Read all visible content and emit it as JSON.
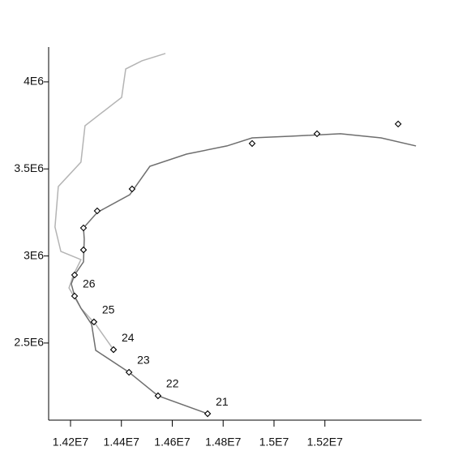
{
  "chart_data": {
    "type": "line",
    "xlim": [
      14114000,
      15580000
    ],
    "ylim": [
      2057000,
      4200000
    ],
    "xticks": [
      {
        "value": 14200000,
        "label": "1.42E7"
      },
      {
        "value": 14400000,
        "label": "1.44E7"
      },
      {
        "value": 14600000,
        "label": "1.46E7"
      },
      {
        "value": 14800000,
        "label": "1.48E7"
      },
      {
        "value": 15000000,
        "label": "1.5E7"
      },
      {
        "value": 15200000,
        "label": "1.52E7"
      }
    ],
    "yticks": [
      {
        "value": 2500000,
        "label": "2.5E6"
      },
      {
        "value": 3000000,
        "label": "3E6"
      },
      {
        "value": 3500000,
        "label": "3.5E6"
      },
      {
        "value": 4000000,
        "label": "4E6"
      }
    ],
    "series": [
      {
        "type": "line",
        "color": "#b4b4b4",
        "x": [
          14369000,
          14299000,
          14241000,
          14194000,
          14210000,
          14241000,
          14162000,
          14139000,
          14152000,
          14241000,
          14257000,
          14401000,
          14417000,
          14481000,
          14573000
        ],
        "values": [
          2462000,
          2607000,
          2700000,
          2816000,
          2886000,
          2979000,
          3026000,
          3166000,
          3399000,
          3539000,
          3748000,
          3911000,
          4074000,
          4121000,
          4163000
        ]
      },
      {
        "type": "line",
        "color": "#6e6e6e",
        "x": [
          14739000,
          14544000,
          14430000,
          14299000,
          14283000,
          14241000,
          14216000,
          14203000,
          14216000,
          14251000,
          14254000,
          14251000,
          14305000,
          14433000,
          14512000,
          14656000,
          14815000,
          14914000,
          15070000,
          15261000,
          15421000,
          15558000
        ],
        "values": [
          2094000,
          2197000,
          2332000,
          2458000,
          2607000,
          2700000,
          2770000,
          2840000,
          2891000,
          2966000,
          3096000,
          3161000,
          3250000,
          3352000,
          3515000,
          3585000,
          3632000,
          3678000,
          3688000,
          3702000,
          3678000,
          3632000
        ]
      },
      {
        "type": "scatter",
        "marker": "diamond",
        "color": "#000000",
        "x": [
          14739000,
          14544000,
          14430000,
          14369000,
          14292000,
          14216000,
          14216000,
          14251000,
          14251000,
          14305000,
          14442000,
          14914000,
          15169000,
          15488000
        ],
        "values": [
          2094000,
          2197000,
          2332000,
          2462000,
          2621000,
          2770000,
          2891000,
          3035000,
          3161000,
          3259000,
          3385000,
          3646000,
          3702000,
          3758000
        ],
        "labels": [
          "21",
          "22",
          "23",
          "24",
          "25",
          "26",
          null,
          null,
          null,
          null,
          null,
          null,
          null,
          null
        ]
      }
    ]
  }
}
